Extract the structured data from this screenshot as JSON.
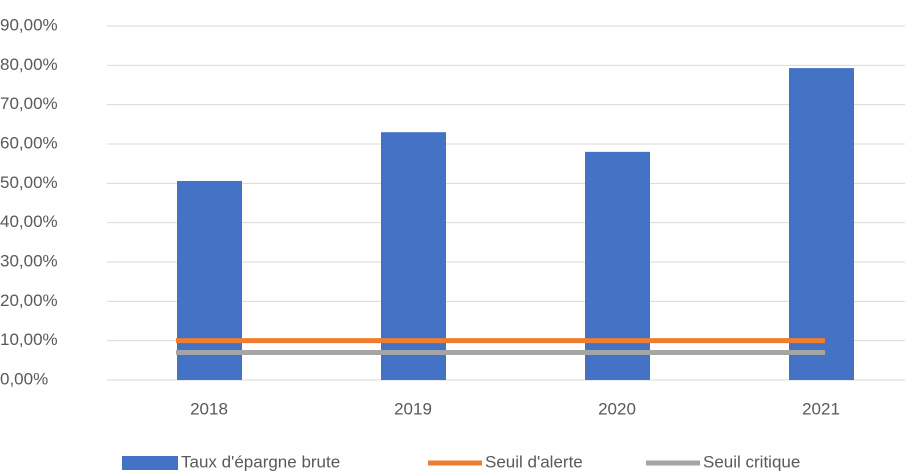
{
  "chart_data": {
    "type": "bar",
    "categories": [
      "2018",
      "2019",
      "2020",
      "2021"
    ],
    "series": [
      {
        "name": "Taux d'épargne brute",
        "type": "bar",
        "color": "#4472c4",
        "values": [
          50.6,
          63.0,
          58.0,
          79.3
        ]
      },
      {
        "name": "Seuil d'alerte",
        "type": "line",
        "color": "#ed7d31",
        "values": [
          10,
          10,
          10,
          10
        ]
      },
      {
        "name": "Seuil critique",
        "type": "line",
        "color": "#a5a5a5",
        "values": [
          7,
          7,
          7,
          7
        ]
      }
    ],
    "ylim": [
      0,
      90
    ],
    "yticks": [
      {
        "value": 0,
        "label": "0,00%"
      },
      {
        "value": 10,
        "label": "10,00%"
      },
      {
        "value": 20,
        "label": "20,00%"
      },
      {
        "value": 30,
        "label": "30,00%"
      },
      {
        "value": 40,
        "label": "40,00%"
      },
      {
        "value": 50,
        "label": "50,00%"
      },
      {
        "value": 60,
        "label": "60,00%"
      },
      {
        "value": 70,
        "label": "70,00%"
      },
      {
        "value": 80,
        "label": "80,00%"
      },
      {
        "value": 90,
        "label": "90,00%"
      }
    ],
    "grid": true,
    "legend": "bottom"
  }
}
